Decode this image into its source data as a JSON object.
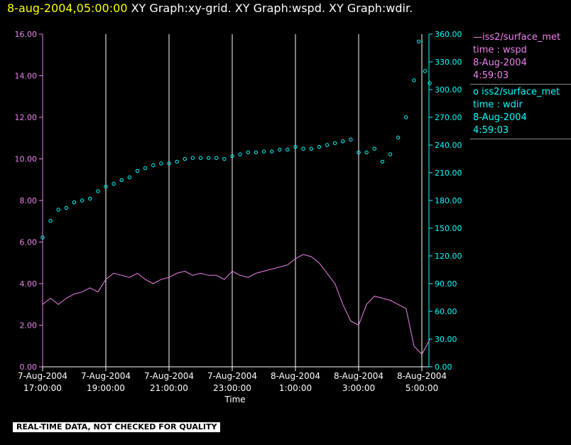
{
  "header": {
    "timestamp": "8-aug-2004,05:00:00",
    "titles": "XY Graph:xy-grid.  XY Graph:wspd.  XY Graph:wdir."
  },
  "colors": {
    "wspd": "#ee82ee",
    "wdir": "#00ffff",
    "grid": "#ffffff",
    "header_ts": "#ffff00"
  },
  "legend": [
    {
      "marker": "—",
      "name": "iss2/surface_met",
      "var": "time : wspd",
      "date": "8-Aug-2004",
      "time": "4:59:03",
      "color": "#ee82ee"
    },
    {
      "marker": "o",
      "name": "iss2/surface_met",
      "var": "time : wdir",
      "date": "8-Aug-2004",
      "time": "4:59:03",
      "color": "#00ffff"
    }
  ],
  "notice": "REAL-TIME DATA, NOT CHECKED FOR QUALITY",
  "chart_data": {
    "type": "line",
    "xlabel": "Time",
    "x_range_hours": [
      0,
      12.25
    ],
    "x_ticks": [
      {
        "date": "7-Aug-2004",
        "time": "17:00:00",
        "h": 0
      },
      {
        "date": "7-Aug-2004",
        "time": "19:00:00",
        "h": 2
      },
      {
        "date": "7-Aug-2004",
        "time": "21:00:00",
        "h": 4
      },
      {
        "date": "7-Aug-2004",
        "time": "23:00:00",
        "h": 6
      },
      {
        "date": "8-Aug-2004",
        "time": "1:00:00",
        "h": 8
      },
      {
        "date": "8-Aug-2004",
        "time": "3:00:00",
        "h": 10
      },
      {
        "date": "8-Aug-2004",
        "time": "5:00:00",
        "h": 12
      }
    ],
    "left_axis": {
      "ylim": [
        0,
        16
      ],
      "ticks": [
        "0.00",
        "2.00",
        "4.00",
        "6.00",
        "8.00",
        "10.00",
        "12.00",
        "14.00",
        "16.00"
      ]
    },
    "right_axis": {
      "ylim": [
        0,
        360
      ],
      "ticks": [
        "0.00",
        "30.00",
        "60.00",
        "90.00",
        "120.00",
        "150.00",
        "180.00",
        "210.00",
        "240.00",
        "270.00",
        "300.00",
        "330.00",
        "360.00"
      ]
    },
    "grid": "vertical",
    "series": [
      {
        "name": "iss2/surface_met time : wspd",
        "axis": "left",
        "style": "line",
        "x": [
          0,
          0.25,
          0.5,
          0.75,
          1,
          1.25,
          1.5,
          1.75,
          2,
          2.25,
          2.5,
          2.75,
          3,
          3.25,
          3.5,
          3.75,
          4,
          4.25,
          4.5,
          4.75,
          5,
          5.25,
          5.5,
          5.75,
          6,
          6.25,
          6.5,
          6.75,
          7,
          7.25,
          7.5,
          7.75,
          8,
          8.25,
          8.5,
          8.75,
          9,
          9.25,
          9.5,
          9.75,
          10,
          10.25,
          10.5,
          10.75,
          11,
          11.25,
          11.5,
          11.75,
          12,
          12.25
        ],
        "y": [
          3.0,
          3.3,
          3.0,
          3.3,
          3.5,
          3.6,
          3.8,
          3.6,
          4.2,
          4.5,
          4.4,
          4.3,
          4.5,
          4.2,
          4.0,
          4.2,
          4.3,
          4.5,
          4.6,
          4.4,
          4.5,
          4.4,
          4.4,
          4.2,
          4.6,
          4.4,
          4.3,
          4.5,
          4.6,
          4.7,
          4.8,
          4.9,
          5.2,
          5.4,
          5.3,
          5.0,
          4.5,
          4.0,
          3.0,
          2.2,
          2.0,
          3.0,
          3.4,
          3.3,
          3.2,
          3.0,
          2.8,
          1.0,
          0.6,
          1.3
        ]
      },
      {
        "name": "iss2/surface_met time : wdir",
        "axis": "right",
        "style": "circles",
        "x": [
          0,
          0.25,
          0.5,
          0.75,
          1,
          1.25,
          1.5,
          1.75,
          2,
          2.25,
          2.5,
          2.75,
          3,
          3.25,
          3.5,
          3.75,
          4,
          4.25,
          4.5,
          4.75,
          5,
          5.25,
          5.5,
          5.75,
          6,
          6.25,
          6.5,
          6.75,
          7,
          7.25,
          7.5,
          7.75,
          8,
          8.25,
          8.5,
          8.75,
          9,
          9.25,
          9.5,
          9.75,
          10,
          10.25,
          10.5,
          10.75,
          11,
          11.25,
          11.5,
          11.75,
          11.9,
          12.1,
          12.25
        ],
        "y": [
          140,
          158,
          170,
          172,
          178,
          180,
          182,
          190,
          195,
          198,
          202,
          205,
          212,
          215,
          218,
          220,
          220,
          222,
          225,
          226,
          226,
          226,
          226,
          225,
          228,
          230,
          232,
          232,
          233,
          233,
          235,
          235,
          238,
          236,
          236,
          238,
          240,
          242,
          244,
          246,
          232,
          232,
          236,
          222,
          230,
          248,
          270,
          310,
          352,
          320,
          307
        ]
      }
    ]
  }
}
